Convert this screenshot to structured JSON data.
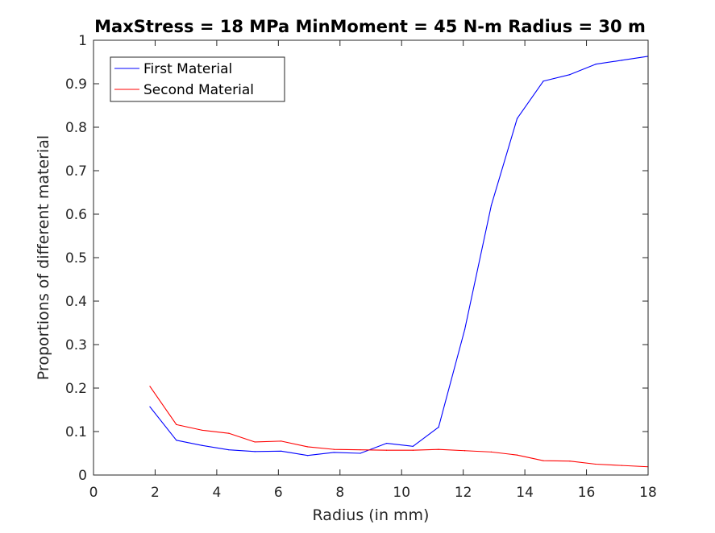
{
  "chart_data": {
    "type": "line",
    "title": "MaxStress = 18 MPa MinMoment = 45 N-m Radius = 30 m",
    "xlabel": "Radius (in mm)",
    "ylabel": "Proportions of different material",
    "xlim": [
      0,
      18
    ],
    "ylim": [
      0,
      1
    ],
    "xticks": [
      0,
      2,
      4,
      6,
      8,
      10,
      12,
      14,
      16,
      18
    ],
    "yticks": [
      0,
      0.1,
      0.2,
      0.3,
      0.4,
      0.5,
      0.6,
      0.7,
      0.8,
      0.9,
      1
    ],
    "x": [
      1.83,
      2.69,
      3.53,
      4.39,
      5.24,
      6.09,
      6.95,
      7.8,
      8.66,
      9.51,
      10.37,
      11.2,
      12.05,
      12.91,
      13.75,
      14.6,
      15.46,
      16.3,
      17.15,
      18.0
    ],
    "grid": false,
    "legend_position": "top-left",
    "series": [
      {
        "name": "First Material",
        "color": "#0000ff",
        "values": [
          0.157,
          0.08,
          0.068,
          0.058,
          0.054,
          0.055,
          0.045,
          0.052,
          0.05,
          0.073,
          0.066,
          0.11,
          0.335,
          0.62,
          0.82,
          0.906,
          0.921,
          0.945,
          0.954,
          0.963
        ]
      },
      {
        "name": "Second Material",
        "color": "#ff0000",
        "values": [
          0.204,
          0.116,
          0.103,
          0.096,
          0.076,
          0.078,
          0.065,
          0.059,
          0.058,
          0.057,
          0.057,
          0.059,
          0.056,
          0.053,
          0.046,
          0.033,
          0.032,
          0.025,
          0.022,
          0.019
        ]
      }
    ]
  }
}
